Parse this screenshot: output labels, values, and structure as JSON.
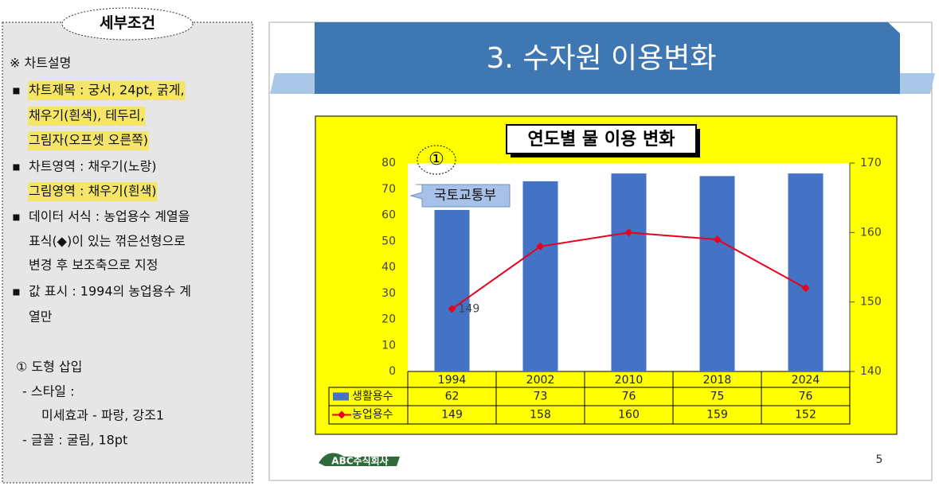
{
  "panel": {
    "title": "세부조건",
    "lines": [
      {
        "text": "※ 차트설명"
      },
      {
        "bullet": "▪",
        "text": "차트제목 : 궁서, 24pt, 굵게,",
        "highlight": true
      },
      {
        "text": "채우기(흰색), 테두리,",
        "highlight": true
      },
      {
        "text": "그림자(오프셋 오른쪽)",
        "highlight": true
      },
      {
        "bullet": "▪",
        "text": "차트영역 : 채우기(노랑)"
      },
      {
        "text": "그림영역 : 채우기(흰색)",
        "highlight": true
      },
      {
        "bullet": "▪",
        "text": "데이터 서식 : 농업용수 계열을"
      },
      {
        "text": "표식(◆)이 있는 꺾은선형으로"
      },
      {
        "text": "변경 후 보조축으로 지정"
      },
      {
        "bullet": "▪",
        "text": "값 표시 : 1994의 농업용수 계"
      },
      {
        "text": "열만"
      },
      {
        "text": "① 도형 삽입"
      },
      {
        "text": "- 스타일 :"
      },
      {
        "text": "미세효과 - 파랑, 강조1"
      },
      {
        "text": "- 글꼴 : 굴림, 18pt"
      }
    ]
  },
  "slide": {
    "title": "3. 수자원 이용변화",
    "logo": "ABC주식회사",
    "page_number": "5",
    "shape_marker": "①"
  },
  "chart_data": {
    "type": "bar",
    "title": "연도별 물 이용 변화",
    "categories": [
      "1994",
      "2002",
      "2010",
      "2018",
      "2024"
    ],
    "series": [
      {
        "name": "생활용수",
        "color": "#4472c4",
        "values": [
          62,
          73,
          76,
          75,
          76
        ]
      },
      {
        "name": "농업용수",
        "color": "#e8001c",
        "type": "line",
        "axis": "y2",
        "values": [
          149,
          158,
          160,
          159,
          152
        ]
      }
    ],
    "ylim": [
      0,
      80
    ],
    "yticks": [
      0,
      10,
      20,
      30,
      40,
      50,
      60,
      70,
      80
    ],
    "y2lim": [
      140,
      170
    ],
    "y2ticks": [
      140,
      150,
      160,
      170
    ],
    "annotations": [
      "국토교통부"
    ],
    "background": "#ffff00",
    "plot_background": "#ffffff",
    "grid": false
  }
}
